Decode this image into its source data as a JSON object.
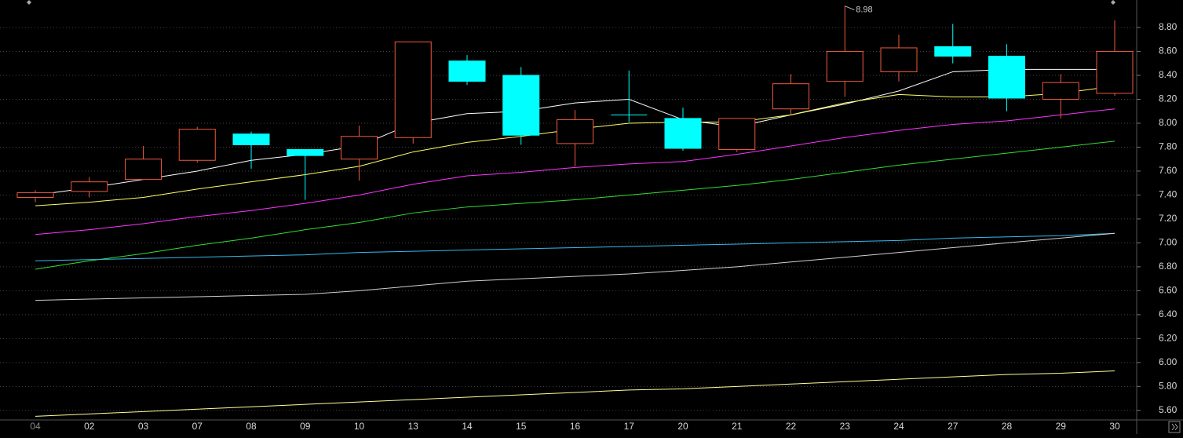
{
  "chart_data": {
    "type": "candlestick",
    "categories": [
      "04",
      "02",
      "03",
      "07",
      "08",
      "09",
      "10",
      "13",
      "14",
      "15",
      "16",
      "17",
      "20",
      "21",
      "22",
      "23",
      "24",
      "27",
      "28",
      "29",
      "30"
    ],
    "open": [
      7.38,
      7.43,
      7.53,
      7.69,
      7.91,
      7.78,
      7.7,
      7.88,
      8.52,
      8.4,
      7.83,
      8.07,
      8.04,
      7.78,
      8.12,
      8.35,
      8.43,
      8.64,
      8.56,
      8.2,
      8.25
    ],
    "high": [
      7.44,
      7.55,
      7.81,
      7.97,
      7.93,
      7.78,
      7.98,
      8.68,
      8.57,
      8.47,
      8.11,
      8.44,
      8.13,
      8.04,
      8.41,
      8.98,
      8.74,
      8.83,
      8.66,
      8.41,
      8.86
    ],
    "low": [
      7.34,
      7.38,
      7.53,
      7.67,
      7.62,
      7.36,
      7.52,
      7.83,
      8.32,
      7.82,
      7.64,
      8.01,
      7.77,
      7.76,
      8.07,
      8.22,
      8.35,
      8.5,
      8.1,
      8.04,
      8.23
    ],
    "close": [
      7.42,
      7.51,
      7.7,
      7.95,
      7.82,
      7.73,
      7.89,
      8.68,
      8.35,
      7.9,
      8.03,
      8.07,
      7.79,
      8.04,
      8.33,
      8.6,
      8.63,
      8.56,
      8.21,
      8.34,
      8.6
    ],
    "up_color": "#f0583c",
    "down_color": "#00ffff",
    "label_max_high": true,
    "lines": [
      {
        "color": "#ffffff",
        "values": [
          7.4,
          7.46,
          7.53,
          7.6,
          7.69,
          7.74,
          7.81,
          8.0,
          8.08,
          8.1,
          8.17,
          8.2,
          8.03,
          7.97,
          8.07,
          8.16,
          8.27,
          8.43,
          8.45,
          8.45,
          8.45
        ]
      },
      {
        "color": "#ffff66",
        "values": [
          7.31,
          7.34,
          7.38,
          7.45,
          7.51,
          7.57,
          7.64,
          7.76,
          7.84,
          7.89,
          7.95,
          8.0,
          8.01,
          8.01,
          8.07,
          8.17,
          8.24,
          8.22,
          8.22,
          8.25,
          8.31
        ]
      },
      {
        "color": "#ff33ff",
        "values": [
          7.07,
          7.11,
          7.16,
          7.22,
          7.27,
          7.33,
          7.4,
          7.49,
          7.56,
          7.59,
          7.63,
          7.66,
          7.68,
          7.74,
          7.81,
          7.88,
          7.94,
          7.99,
          8.02,
          8.07,
          8.12
        ]
      },
      {
        "color": "#33dd33",
        "values": [
          6.78,
          6.85,
          6.91,
          6.98,
          7.04,
          7.11,
          7.17,
          7.25,
          7.3,
          7.33,
          7.36,
          7.4,
          7.44,
          7.48,
          7.53,
          7.59,
          7.65,
          7.7,
          7.75,
          7.8,
          7.85
        ]
      },
      {
        "color": "#33bbee",
        "values": [
          6.85,
          6.86,
          6.87,
          6.88,
          6.89,
          6.9,
          6.92,
          6.93,
          6.94,
          6.95,
          6.96,
          6.97,
          6.98,
          6.99,
          7.0,
          7.01,
          7.02,
          7.04,
          7.05,
          7.06,
          7.08
        ]
      },
      {
        "color": "#d0d0d0",
        "values": [
          6.52,
          6.53,
          6.54,
          6.55,
          6.56,
          6.57,
          6.6,
          6.64,
          6.68,
          6.7,
          6.72,
          6.74,
          6.77,
          6.8,
          6.84,
          6.88,
          6.92,
          6.96,
          7.0,
          7.04,
          7.08
        ]
      },
      {
        "color": "#ffff99",
        "values": [
          5.55,
          5.57,
          5.59,
          5.61,
          5.63,
          5.65,
          5.67,
          5.69,
          5.71,
          5.73,
          5.75,
          5.77,
          5.78,
          5.8,
          5.82,
          5.84,
          5.86,
          5.88,
          5.9,
          5.91,
          5.93
        ]
      }
    ],
    "ylim": [
      5.52,
      9.03
    ],
    "yticks": [
      {
        "value": 5.6,
        "label": "5.60"
      },
      {
        "value": 5.8,
        "label": "5.80"
      },
      {
        "value": 6.0,
        "label": "6.00"
      },
      {
        "value": 6.2,
        "label": "6.20"
      },
      {
        "value": 6.4,
        "label": "6.40"
      },
      {
        "value": 6.6,
        "label": "6.60"
      },
      {
        "value": 6.8,
        "label": "6.80"
      },
      {
        "value": 7.0,
        "label": "7.00"
      },
      {
        "value": 7.2,
        "label": "7.20"
      },
      {
        "value": 7.4,
        "label": "7.40"
      },
      {
        "value": 7.6,
        "label": "7.60"
      },
      {
        "value": 7.8,
        "label": "7.80"
      },
      {
        "value": 8.0,
        "label": "8.00"
      },
      {
        "value": 8.2,
        "label": "8.20"
      },
      {
        "value": 8.4,
        "label": "8.40"
      },
      {
        "value": 8.6,
        "label": "8.60"
      },
      {
        "value": 8.8,
        "label": "8.80"
      }
    ],
    "grid": true
  }
}
